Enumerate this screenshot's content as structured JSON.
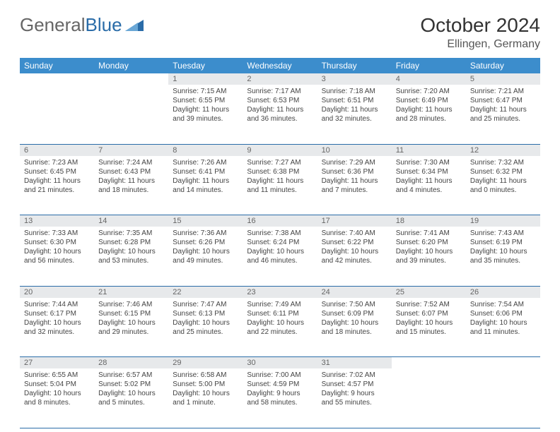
{
  "logo": {
    "text1": "General",
    "text2": "Blue"
  },
  "title": "October 2024",
  "location": "Ellingen, Germany",
  "colors": {
    "header_bg": "#3c8dcc",
    "header_text": "#ffffff",
    "daynum_bg": "#e7e9eb",
    "daynum_text": "#666666",
    "border": "#2a6ca8",
    "page_bg": "#ffffff",
    "body_text": "#444444"
  },
  "weekdays": [
    "Sunday",
    "Monday",
    "Tuesday",
    "Wednesday",
    "Thursday",
    "Friday",
    "Saturday"
  ],
  "weeks": [
    [
      null,
      null,
      {
        "n": "1",
        "sr": "Sunrise: 7:15 AM",
        "ss": "Sunset: 6:55 PM",
        "dl": "Daylight: 11 hours and 39 minutes."
      },
      {
        "n": "2",
        "sr": "Sunrise: 7:17 AM",
        "ss": "Sunset: 6:53 PM",
        "dl": "Daylight: 11 hours and 36 minutes."
      },
      {
        "n": "3",
        "sr": "Sunrise: 7:18 AM",
        "ss": "Sunset: 6:51 PM",
        "dl": "Daylight: 11 hours and 32 minutes."
      },
      {
        "n": "4",
        "sr": "Sunrise: 7:20 AM",
        "ss": "Sunset: 6:49 PM",
        "dl": "Daylight: 11 hours and 28 minutes."
      },
      {
        "n": "5",
        "sr": "Sunrise: 7:21 AM",
        "ss": "Sunset: 6:47 PM",
        "dl": "Daylight: 11 hours and 25 minutes."
      }
    ],
    [
      {
        "n": "6",
        "sr": "Sunrise: 7:23 AM",
        "ss": "Sunset: 6:45 PM",
        "dl": "Daylight: 11 hours and 21 minutes."
      },
      {
        "n": "7",
        "sr": "Sunrise: 7:24 AM",
        "ss": "Sunset: 6:43 PM",
        "dl": "Daylight: 11 hours and 18 minutes."
      },
      {
        "n": "8",
        "sr": "Sunrise: 7:26 AM",
        "ss": "Sunset: 6:41 PM",
        "dl": "Daylight: 11 hours and 14 minutes."
      },
      {
        "n": "9",
        "sr": "Sunrise: 7:27 AM",
        "ss": "Sunset: 6:38 PM",
        "dl": "Daylight: 11 hours and 11 minutes."
      },
      {
        "n": "10",
        "sr": "Sunrise: 7:29 AM",
        "ss": "Sunset: 6:36 PM",
        "dl": "Daylight: 11 hours and 7 minutes."
      },
      {
        "n": "11",
        "sr": "Sunrise: 7:30 AM",
        "ss": "Sunset: 6:34 PM",
        "dl": "Daylight: 11 hours and 4 minutes."
      },
      {
        "n": "12",
        "sr": "Sunrise: 7:32 AM",
        "ss": "Sunset: 6:32 PM",
        "dl": "Daylight: 11 hours and 0 minutes."
      }
    ],
    [
      {
        "n": "13",
        "sr": "Sunrise: 7:33 AM",
        "ss": "Sunset: 6:30 PM",
        "dl": "Daylight: 10 hours and 56 minutes."
      },
      {
        "n": "14",
        "sr": "Sunrise: 7:35 AM",
        "ss": "Sunset: 6:28 PM",
        "dl": "Daylight: 10 hours and 53 minutes."
      },
      {
        "n": "15",
        "sr": "Sunrise: 7:36 AM",
        "ss": "Sunset: 6:26 PM",
        "dl": "Daylight: 10 hours and 49 minutes."
      },
      {
        "n": "16",
        "sr": "Sunrise: 7:38 AM",
        "ss": "Sunset: 6:24 PM",
        "dl": "Daylight: 10 hours and 46 minutes."
      },
      {
        "n": "17",
        "sr": "Sunrise: 7:40 AM",
        "ss": "Sunset: 6:22 PM",
        "dl": "Daylight: 10 hours and 42 minutes."
      },
      {
        "n": "18",
        "sr": "Sunrise: 7:41 AM",
        "ss": "Sunset: 6:20 PM",
        "dl": "Daylight: 10 hours and 39 minutes."
      },
      {
        "n": "19",
        "sr": "Sunrise: 7:43 AM",
        "ss": "Sunset: 6:19 PM",
        "dl": "Daylight: 10 hours and 35 minutes."
      }
    ],
    [
      {
        "n": "20",
        "sr": "Sunrise: 7:44 AM",
        "ss": "Sunset: 6:17 PM",
        "dl": "Daylight: 10 hours and 32 minutes."
      },
      {
        "n": "21",
        "sr": "Sunrise: 7:46 AM",
        "ss": "Sunset: 6:15 PM",
        "dl": "Daylight: 10 hours and 29 minutes."
      },
      {
        "n": "22",
        "sr": "Sunrise: 7:47 AM",
        "ss": "Sunset: 6:13 PM",
        "dl": "Daylight: 10 hours and 25 minutes."
      },
      {
        "n": "23",
        "sr": "Sunrise: 7:49 AM",
        "ss": "Sunset: 6:11 PM",
        "dl": "Daylight: 10 hours and 22 minutes."
      },
      {
        "n": "24",
        "sr": "Sunrise: 7:50 AM",
        "ss": "Sunset: 6:09 PM",
        "dl": "Daylight: 10 hours and 18 minutes."
      },
      {
        "n": "25",
        "sr": "Sunrise: 7:52 AM",
        "ss": "Sunset: 6:07 PM",
        "dl": "Daylight: 10 hours and 15 minutes."
      },
      {
        "n": "26",
        "sr": "Sunrise: 7:54 AM",
        "ss": "Sunset: 6:06 PM",
        "dl": "Daylight: 10 hours and 11 minutes."
      }
    ],
    [
      {
        "n": "27",
        "sr": "Sunrise: 6:55 AM",
        "ss": "Sunset: 5:04 PM",
        "dl": "Daylight: 10 hours and 8 minutes."
      },
      {
        "n": "28",
        "sr": "Sunrise: 6:57 AM",
        "ss": "Sunset: 5:02 PM",
        "dl": "Daylight: 10 hours and 5 minutes."
      },
      {
        "n": "29",
        "sr": "Sunrise: 6:58 AM",
        "ss": "Sunset: 5:00 PM",
        "dl": "Daylight: 10 hours and 1 minute."
      },
      {
        "n": "30",
        "sr": "Sunrise: 7:00 AM",
        "ss": "Sunset: 4:59 PM",
        "dl": "Daylight: 9 hours and 58 minutes."
      },
      {
        "n": "31",
        "sr": "Sunrise: 7:02 AM",
        "ss": "Sunset: 4:57 PM",
        "dl": "Daylight: 9 hours and 55 minutes."
      },
      null,
      null
    ]
  ]
}
